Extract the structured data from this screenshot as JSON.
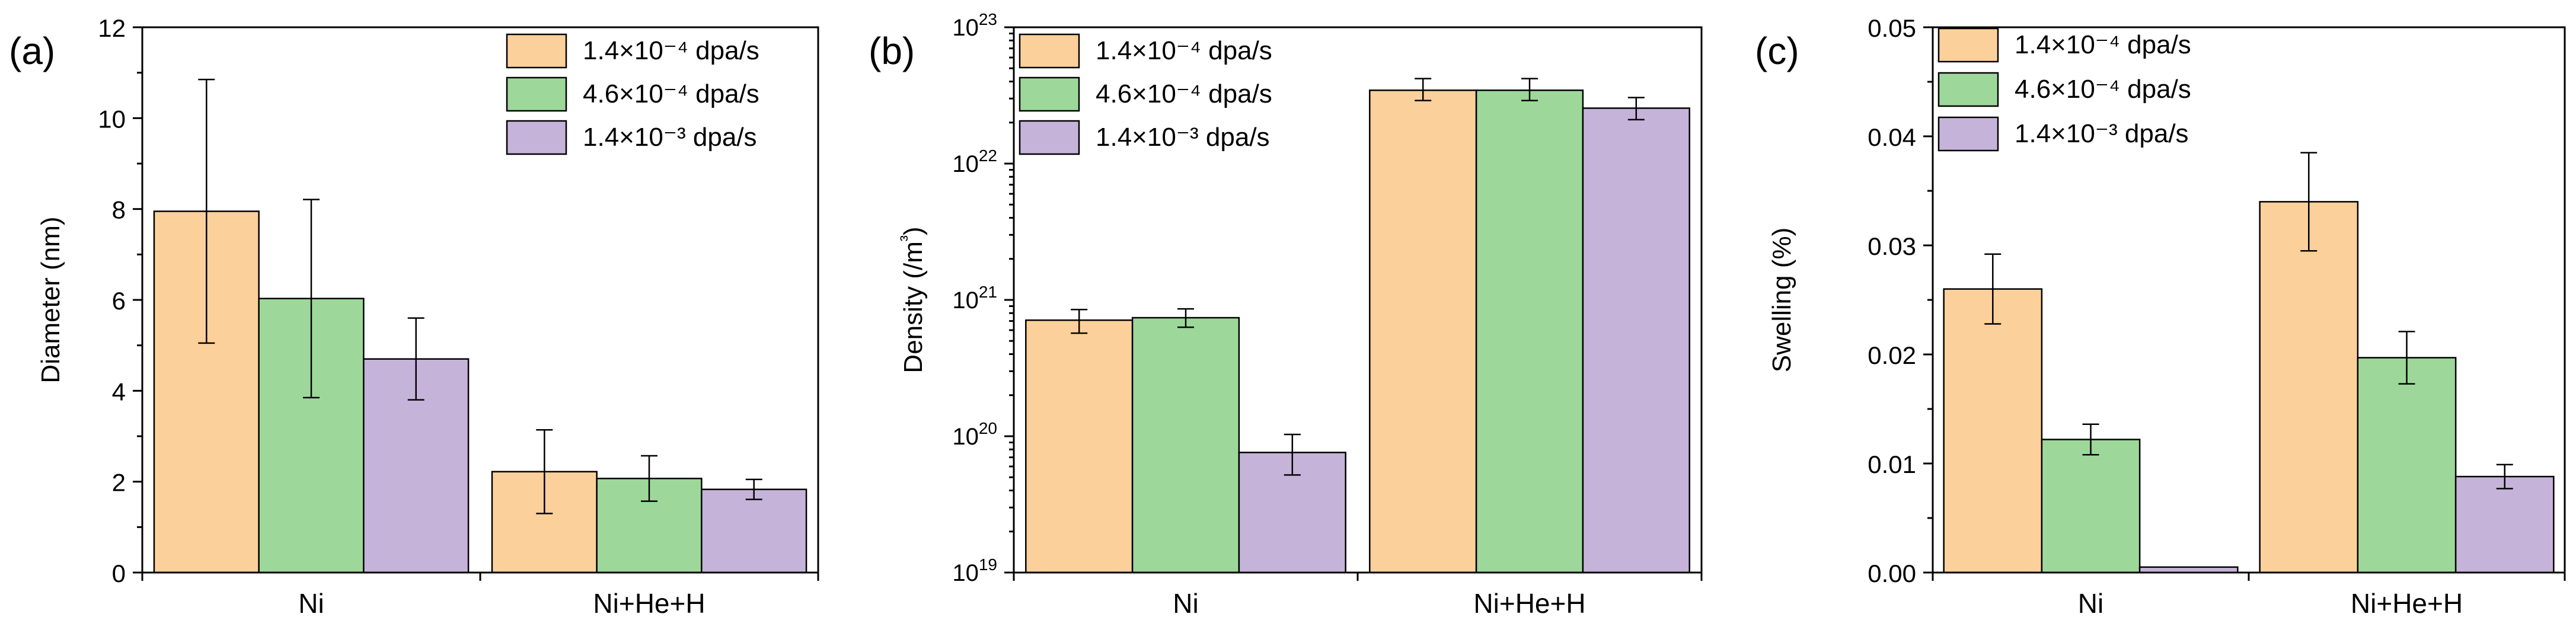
{
  "chart_data": [
    {
      "type": "bar",
      "panel_label": "(a)",
      "categories": [
        "Ni",
        "Ni+He+H"
      ],
      "ylabel": "Diameter (nm)",
      "xlabel": "",
      "yscale": "linear",
      "ylim": [
        0,
        12
      ],
      "yticks": [
        0,
        2,
        4,
        6,
        8,
        10,
        12
      ],
      "ytick_labels": [
        "0",
        "2",
        "4",
        "6",
        "8",
        "10",
        "12"
      ],
      "series": [
        {
          "name": "1.4×10⁻⁴ dpa/s",
          "color": "#fcd09a",
          "values": [
            7.95,
            2.22
          ],
          "errors": [
            2.9,
            0.92
          ]
        },
        {
          "name": "4.6×10⁻⁴ dpa/s",
          "color": "#9dd89a",
          "values": [
            6.03,
            2.07
          ],
          "errors": [
            2.18,
            0.5
          ]
        },
        {
          "name": "1.4×10⁻³ dpa/s",
          "color": "#c6b3d9",
          "values": [
            4.7,
            1.83
          ],
          "errors": [
            0.9,
            0.22
          ]
        }
      ],
      "legend_position": "top-right"
    },
    {
      "type": "bar",
      "panel_label": "(b)",
      "categories": [
        "Ni",
        "Ni+He+H"
      ],
      "ylabel": "Density (/m³)",
      "xlabel": "",
      "yscale": "log",
      "ylim": [
        1e+19,
        1e+23
      ],
      "yticks": [
        1e+19,
        1e+20,
        1e+21,
        1e+22,
        1e+23
      ],
      "ytick_labels": [
        {
          "base": "10",
          "exp": "19"
        },
        {
          "base": "10",
          "exp": "20"
        },
        {
          "base": "10",
          "exp": "21"
        },
        {
          "base": "10",
          "exp": "22"
        },
        {
          "base": "10",
          "exp": "23"
        }
      ],
      "series": [
        {
          "name": "1.4×10⁻⁴ dpa/s",
          "color": "#fcd09a",
          "values": [
            7.1e+20,
            3.45e+22
          ],
          "err_low": [
            5.7e+20,
            2.9e+22
          ],
          "err_high": [
            8.5e+20,
            4.2e+22
          ]
        },
        {
          "name": "4.6×10⁻⁴ dpa/s",
          "color": "#9dd89a",
          "values": [
            7.4e+20,
            3.45e+22
          ],
          "err_low": [
            6.3e+20,
            2.9e+22
          ],
          "err_high": [
            8.6e+20,
            4.2e+22
          ]
        },
        {
          "name": "1.4×10⁻³ dpa/s",
          "color": "#c6b3d9",
          "values": [
            7.6e+19,
            2.55e+22
          ],
          "err_low": [
            5.2e+19,
            2.1e+22
          ],
          "err_high": [
            1.03e+20,
            3.05e+22
          ]
        }
      ],
      "legend_position": "top-left"
    },
    {
      "type": "bar",
      "panel_label": "(c)",
      "categories": [
        "Ni",
        "Ni+He+H"
      ],
      "ylabel": "Swelling (%)",
      "xlabel": "",
      "yscale": "linear",
      "ylim": [
        0,
        0.05
      ],
      "yticks": [
        0,
        0.01,
        0.02,
        0.03,
        0.04,
        0.05
      ],
      "ytick_labels": [
        "0.00",
        "0.01",
        "0.02",
        "0.03",
        "0.04",
        "0.05"
      ],
      "series": [
        {
          "name": "1.4×10⁻⁴ dpa/s",
          "color": "#fcd09a",
          "values": [
            0.026,
            0.034
          ],
          "errors": [
            0.0032,
            0.0045
          ]
        },
        {
          "name": "4.6×10⁻⁴ dpa/s",
          "color": "#9dd89a",
          "values": [
            0.0122,
            0.0197
          ],
          "errors": [
            0.0014,
            0.0024
          ]
        },
        {
          "name": "1.4×10⁻³ dpa/s",
          "color": "#c6b3d9",
          "values": [
            0.0005,
            0.0088
          ],
          "errors": [
            0.0,
            0.0011
          ]
        }
      ],
      "legend_position": "top-left"
    }
  ]
}
